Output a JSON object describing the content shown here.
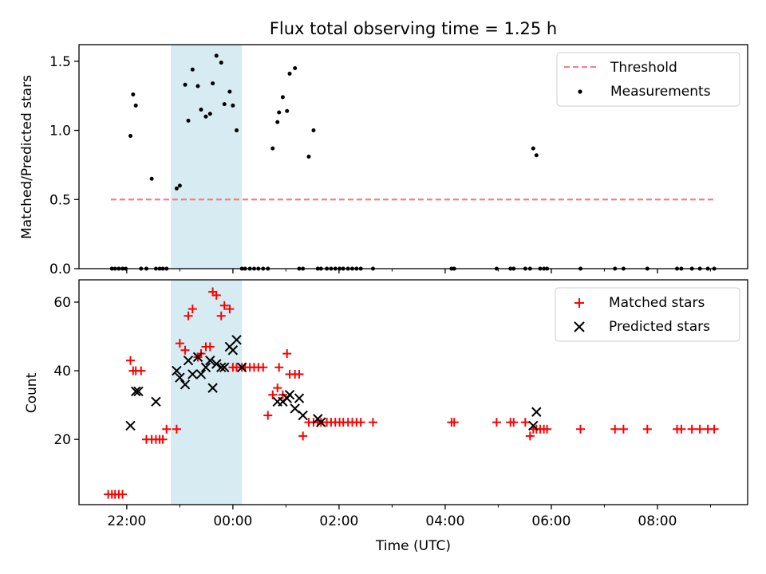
{
  "chart_data": [
    {
      "type": "scatter",
      "title": "Flux total observing time = 1.25 h",
      "xlabel": "",
      "ylabel": "Matched/Predicted stars",
      "xlim": [
        -2.9,
        9.7
      ],
      "ylim": [
        0,
        1.62
      ],
      "yticks": [
        0.0,
        0.5,
        1.0,
        1.5
      ],
      "ytick_labels": [
        "0.0",
        "0.5",
        "1.0",
        "1.5"
      ],
      "shaded_span": [
        -1.17,
        0.17
      ],
      "shaded_color": "#add8e6",
      "legend_position": "upper right",
      "series": [
        {
          "name": "Threshold",
          "kind": "line-dashed",
          "color": "#f08080",
          "x": [
            -2.3,
            9.07
          ],
          "y": [
            0.5,
            0.5
          ]
        },
        {
          "name": "Measurements",
          "kind": "dot",
          "color": "#000000",
          "x": [
            -2.28,
            -2.22,
            -2.15,
            -2.08,
            -2.02,
            -1.93,
            -1.88,
            -1.83,
            -1.73,
            -1.63,
            -1.53,
            -1.45,
            -1.38,
            -1.32,
            -1.25,
            -1.06,
            -1.0,
            -0.9,
            -0.84,
            -0.76,
            -0.66,
            -0.6,
            -0.51,
            -0.43,
            -0.38,
            -0.31,
            -0.22,
            -0.16,
            -0.06,
            0.0,
            0.07,
            0.17,
            0.23,
            0.32,
            0.4,
            0.48,
            0.57,
            0.66,
            0.75,
            0.84,
            0.87,
            0.94,
            1.02,
            1.07,
            1.17,
            1.25,
            1.32,
            1.43,
            1.52,
            1.6,
            1.66,
            1.77,
            1.85,
            1.93,
            2.01,
            2.08,
            2.17,
            2.25,
            2.33,
            2.41,
            2.64,
            4.12,
            4.17,
            4.97,
            5.23,
            5.29,
            5.51,
            5.6,
            5.66,
            5.72,
            5.79,
            5.86,
            5.92,
            6.55,
            7.2,
            7.36,
            7.81,
            8.37,
            8.45,
            8.65,
            8.8,
            8.95,
            9.07
          ],
          "y": [
            0,
            0,
            0,
            0,
            0,
            0.96,
            1.26,
            1.18,
            0,
            0,
            0.65,
            0,
            0,
            0,
            0,
            0.58,
            0.6,
            1.33,
            1.07,
            1.44,
            1.32,
            1.15,
            1.1,
            1.12,
            1.34,
            1.54,
            1.49,
            1.19,
            1.28,
            1.18,
            1.0,
            0,
            0,
            0,
            0,
            0,
            0,
            0,
            0.87,
            1.06,
            1.13,
            1.24,
            1.14,
            1.41,
            1.45,
            0,
            0,
            0.81,
            1.0,
            0,
            0,
            0,
            0,
            0,
            0,
            0,
            0,
            0,
            0,
            0,
            0,
            0,
            0,
            0,
            0,
            0,
            0,
            0,
            0.87,
            0.82,
            0,
            0,
            0,
            0,
            0,
            0,
            0,
            0,
            0,
            0,
            0,
            0,
            0
          ]
        }
      ]
    },
    {
      "type": "scatter",
      "title": "",
      "xlabel": "Time (UTC)",
      "ylabel": "Count",
      "xlim": [
        -2.9,
        9.7
      ],
      "ylim": [
        1,
        66.5
      ],
      "yticks": [
        20,
        40,
        60
      ],
      "ytick_labels": [
        "20",
        "40",
        "60"
      ],
      "xticks": [
        -2,
        0,
        2,
        4,
        6,
        8
      ],
      "xtick_labels": [
        "22:00",
        "00:00",
        "02:00",
        "04:00",
        "06:00",
        "08:00"
      ],
      "minor_xticks": [
        -1,
        1,
        3,
        5,
        7,
        9
      ],
      "shaded_span": [
        -1.17,
        0.17
      ],
      "shaded_color": "#add8e6",
      "legend_position": "upper right",
      "series": [
        {
          "name": "Matched stars",
          "kind": "plus",
          "color": "#ff0000",
          "x": [
            -2.35,
            -2.28,
            -2.22,
            -2.15,
            -2.08,
            -1.93,
            -1.88,
            -1.83,
            -1.73,
            -1.63,
            -1.53,
            -1.45,
            -1.38,
            -1.32,
            -1.25,
            -1.06,
            -1.0,
            -0.9,
            -0.84,
            -0.76,
            -0.66,
            -0.6,
            -0.51,
            -0.43,
            -0.38,
            -0.31,
            -0.22,
            -0.16,
            -0.06,
            0.0,
            0.07,
            0.17,
            0.23,
            0.32,
            0.4,
            0.48,
            0.57,
            0.66,
            0.75,
            0.84,
            0.87,
            0.94,
            1.02,
            1.07,
            1.17,
            1.25,
            1.32,
            1.43,
            1.52,
            1.6,
            1.66,
            1.77,
            1.85,
            1.93,
            2.01,
            2.08,
            2.17,
            2.25,
            2.33,
            2.41,
            2.64,
            4.12,
            4.17,
            4.97,
            5.23,
            5.29,
            5.51,
            5.6,
            5.66,
            5.72,
            5.79,
            5.86,
            5.92,
            6.55,
            7.2,
            7.36,
            7.81,
            8.37,
            8.45,
            8.65,
            8.8,
            8.95,
            9.07
          ],
          "y": [
            4,
            4,
            4,
            4,
            4,
            43,
            40,
            40,
            40,
            20,
            20,
            20,
            20,
            20,
            23,
            23,
            48,
            46,
            56,
            58,
            44,
            45,
            47,
            47,
            63,
            62,
            56,
            59,
            58,
            41,
            41,
            41,
            41,
            41,
            41,
            41,
            41,
            27,
            33,
            35,
            41,
            33,
            45,
            39,
            39,
            39,
            21,
            25,
            25,
            25,
            25,
            25,
            25,
            25,
            25,
            25,
            25,
            25,
            25,
            25,
            25,
            25,
            25,
            25,
            25,
            25,
            25,
            21,
            23,
            23,
            23,
            23,
            23,
            23,
            23,
            23,
            23,
            23,
            23,
            23,
            23,
            23,
            23
          ]
        },
        {
          "name": "Predicted stars",
          "kind": "x",
          "color": "#000000",
          "x": [
            -1.93,
            -1.83,
            -1.78,
            -1.45,
            -1.06,
            -1.0,
            -0.9,
            -0.84,
            -0.76,
            -0.66,
            -0.6,
            -0.51,
            -0.43,
            -0.38,
            -0.31,
            -0.22,
            -0.16,
            -0.06,
            0.0,
            0.07,
            0.17,
            0.84,
            0.94,
            1.02,
            1.07,
            1.17,
            1.25,
            1.32,
            1.6,
            1.66,
            5.66,
            5.72
          ],
          "y": [
            24,
            34,
            34,
            31,
            40,
            38,
            36,
            43,
            39,
            44,
            39,
            41,
            43,
            35,
            42,
            41,
            41,
            47,
            46,
            49,
            41,
            31,
            31,
            32,
            33,
            29,
            32,
            27,
            26,
            25,
            24,
            28
          ]
        }
      ]
    }
  ]
}
